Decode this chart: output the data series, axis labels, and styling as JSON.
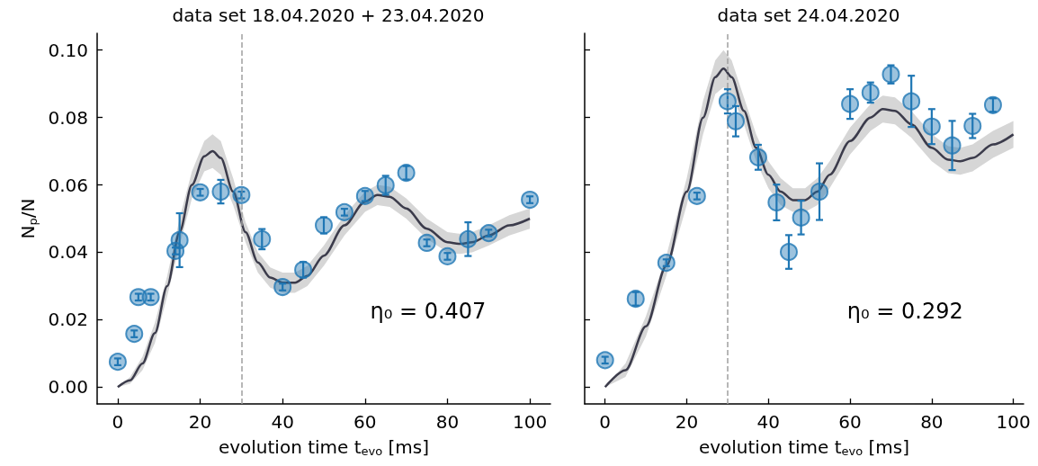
{
  "chart_data": [
    {
      "type": "scatter",
      "title": "data set 18.04.2020 + 23.04.2020",
      "xlabel": "evolution time t$_{evo}$ [ms]",
      "ylabel": "N$_{p}$/N",
      "xlim": [
        -5,
        105
      ],
      "ylim": [
        -0.005,
        0.105
      ],
      "xticks": [
        0,
        20,
        40,
        60,
        80,
        100
      ],
      "yticks": [
        {
          "value": 0,
          "label": "0.00"
        },
        {
          "value": 0.02,
          "label": "0.02"
        },
        {
          "value": 0.04,
          "label": "0.04"
        },
        {
          "value": 0.06,
          "label": "0.06"
        },
        {
          "value": 0.08,
          "label": "0.08"
        },
        {
          "value": 0.1,
          "label": "0.10"
        }
      ],
      "ref_lines": [
        {
          "axis": "x",
          "value": 30,
          "color": "#a0a0a0",
          "line_style": "dashed"
        }
      ],
      "annotations": [
        "η₀ = 0.407"
      ],
      "series": [
        {
          "type": "line",
          "marker": "none",
          "color": "#3b3b4b",
          "x": [
            0,
            3,
            6,
            9,
            12,
            15,
            18,
            21,
            23,
            25,
            28,
            31,
            34,
            37,
            40,
            43,
            46,
            50,
            55,
            60,
            63,
            66,
            70,
            75,
            80,
            83,
            86,
            90,
            95,
            100
          ],
          "values": [
            0,
            0.002,
            0.007,
            0.016,
            0.03,
            0.046,
            0.06,
            0.0685,
            0.07,
            0.068,
            0.058,
            0.046,
            0.037,
            0.0325,
            0.031,
            0.031,
            0.033,
            0.039,
            0.048,
            0.055,
            0.057,
            0.0565,
            0.053,
            0.047,
            0.043,
            0.0425,
            0.043,
            0.045,
            0.048,
            0.05
          ],
          "lower": [
            0,
            0.001,
            0.005,
            0.013,
            0.027,
            0.042,
            0.056,
            0.064,
            0.065,
            0.063,
            0.054,
            0.043,
            0.034,
            0.0295,
            0.028,
            0.028,
            0.03,
            0.036,
            0.045,
            0.052,
            0.054,
            0.0535,
            0.05,
            0.044,
            0.04,
            0.0395,
            0.04,
            0.042,
            0.045,
            0.047
          ],
          "upper": [
            0,
            0.003,
            0.009,
            0.019,
            0.033,
            0.05,
            0.064,
            0.073,
            0.075,
            0.073,
            0.062,
            0.049,
            0.04,
            0.0355,
            0.034,
            0.034,
            0.036,
            0.042,
            0.051,
            0.058,
            0.06,
            0.0595,
            0.056,
            0.05,
            0.046,
            0.0455,
            0.046,
            0.048,
            0.051,
            0.053
          ]
        },
        {
          "marker": "circle",
          "color": "#1f77b4",
          "x": [
            0,
            4,
            5,
            8,
            14,
            15,
            20,
            25,
            30,
            35,
            40,
            45,
            50,
            55,
            60,
            65,
            70,
            75,
            80,
            85,
            90,
            100
          ],
          "values": [
            0.0075,
            0.0158,
            0.0267,
            0.0267,
            0.0404,
            0.0436,
            0.0578,
            0.058,
            0.057,
            0.0439,
            0.0297,
            0.0348,
            0.048,
            0.0519,
            0.0567,
            0.0599,
            0.0636,
            0.0428,
            0.0388,
            0.0439,
            0.0457,
            0.0556
          ],
          "errors": [
            0.001,
            0.001,
            0.001,
            0.001,
            0.001,
            0.008,
            0.001,
            0.0035,
            0.001,
            0.003,
            0.001,
            0.0023,
            0.0024,
            0.001,
            0.0015,
            0.0028,
            0.002,
            0.001,
            0.001,
            0.005,
            0.001,
            0.001
          ]
        }
      ]
    },
    {
      "type": "scatter",
      "title": "data set 24.04.2020",
      "xlabel": "evolution time t$_{evo}$ [ms]",
      "xlim": [
        -5,
        102.5
      ],
      "ylim": [
        -0.005,
        0.105
      ],
      "xticks": [
        0,
        20,
        40,
        60,
        80,
        100
      ],
      "yticks": [
        {
          "value": 0,
          "label": null
        },
        {
          "value": 0.02,
          "label": null
        },
        {
          "value": 0.04,
          "label": null
        },
        {
          "value": 0.06,
          "label": null
        },
        {
          "value": 0.08,
          "label": null
        },
        {
          "value": 0.1,
          "label": null
        }
      ],
      "tick_labels": "x",
      "ref_lines": [
        {
          "axis": "x",
          "value": 30,
          "color": "#a0a0a0",
          "line_style": "dashed"
        }
      ],
      "annotations": [
        "η₀ = 0.292"
      ],
      "series": [
        {
          "type": "line",
          "marker": "none",
          "color": "#3b3b4b",
          "x": [
            0,
            5,
            10,
            15,
            20,
            24,
            27,
            29,
            31,
            34,
            37,
            40,
            43,
            46,
            49,
            52,
            55,
            60,
            65,
            68,
            71,
            75,
            80,
            84,
            87,
            90,
            95,
            100
          ],
          "values": [
            0,
            0.005,
            0.018,
            0.036,
            0.058,
            0.08,
            0.092,
            0.0945,
            0.092,
            0.082,
            0.071,
            0.063,
            0.058,
            0.0555,
            0.0555,
            0.058,
            0.063,
            0.073,
            0.08,
            0.0825,
            0.082,
            0.078,
            0.071,
            0.0675,
            0.067,
            0.068,
            0.072,
            0.075
          ],
          "lower": [
            0,
            0.003,
            0.015,
            0.033,
            0.054,
            0.075,
            0.087,
            0.089,
            0.087,
            0.078,
            0.067,
            0.059,
            0.054,
            0.052,
            0.052,
            0.054,
            0.059,
            0.069,
            0.076,
            0.0785,
            0.078,
            0.074,
            0.067,
            0.0635,
            0.063,
            0.064,
            0.068,
            0.071
          ],
          "upper": [
            0,
            0.007,
            0.021,
            0.039,
            0.062,
            0.085,
            0.097,
            0.1,
            0.097,
            0.086,
            0.075,
            0.067,
            0.062,
            0.059,
            0.059,
            0.062,
            0.067,
            0.077,
            0.084,
            0.0865,
            0.086,
            0.082,
            0.075,
            0.0715,
            0.071,
            0.072,
            0.076,
            0.079
          ]
        },
        {
          "marker": "circle",
          "color": "#1f77b4",
          "x": [
            0,
            7.5,
            15,
            22.5,
            30,
            32,
            37.5,
            42,
            45,
            48,
            52.5,
            60,
            65,
            70,
            75,
            80,
            85,
            90,
            95
          ],
          "values": [
            0.008,
            0.0262,
            0.0369,
            0.0567,
            0.0848,
            0.0789,
            0.0682,
            0.0548,
            0.0401,
            0.0503,
            0.058,
            0.084,
            0.0874,
            0.0928,
            0.0848,
            0.0773,
            0.0717,
            0.0775,
            0.0837
          ],
          "errors": [
            0.001,
            0.002,
            0.001,
            0.001,
            0.0036,
            0.0045,
            0.0037,
            0.0053,
            0.005,
            0.005,
            0.0084,
            0.0044,
            0.003,
            0.0027,
            0.0076,
            0.0052,
            0.0073,
            0.0036,
            0.002
          ]
        }
      ]
    }
  ]
}
